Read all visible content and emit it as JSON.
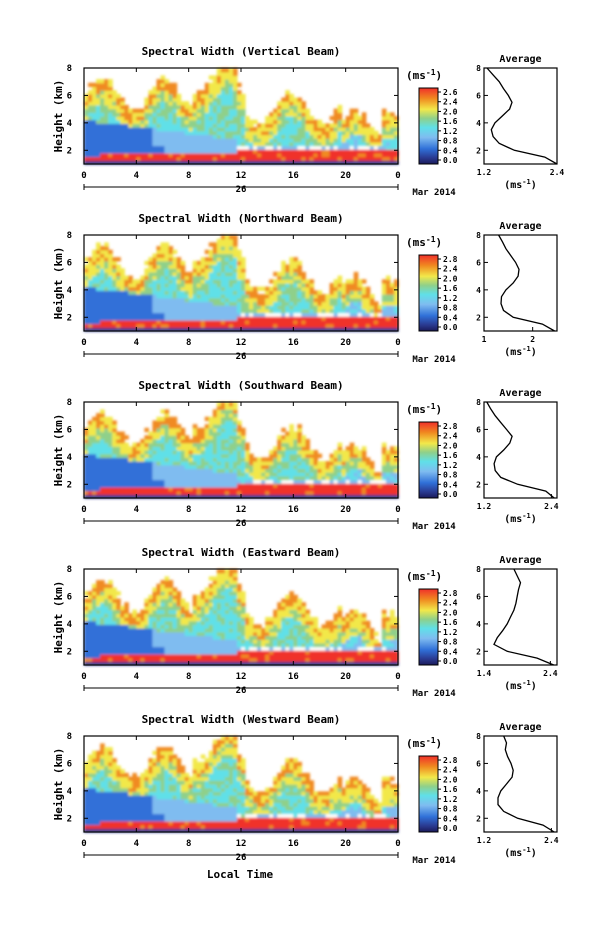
{
  "figure": {
    "xlabel": "Local Time",
    "date_label": "Mar 2014",
    "day_label": "26",
    "colorbar_unit": "(ms",
    "colorbar_unit_sup": "-1",
    "avg_title": "Average",
    "avg_unit": "(ms",
    "avg_unit_sup": "-1",
    "ylabel": "Height (km)",
    "colors": {
      "red": "#f0302a",
      "orange": "#f08a20",
      "yellow": "#f2e84a",
      "green": "#8fd08a",
      "cyan": "#60e0e8",
      "lightblue": "#7fbcf0",
      "blue": "#3070d8",
      "navy": "#2a3a90"
    }
  },
  "chart_data": [
    {
      "type": "heatmap",
      "title": "Spectral Width (Vertical Beam)",
      "x_ticks": [
        "0",
        "4",
        "8",
        "12",
        "16",
        "20",
        "0"
      ],
      "xlim": [
        0,
        24
      ],
      "y_ticks": [
        "2",
        "4",
        "6",
        "8"
      ],
      "ylim": [
        1,
        8
      ],
      "colorbar_ticks": [
        "2.6",
        "2.4",
        "2.0",
        "1.6",
        "1.2",
        "0.8",
        "0.4",
        "0.0"
      ],
      "colorbar_range": [
        0,
        2.8
      ],
      "average_profile": {
        "x_ticks": [
          "1.2",
          "2.4"
        ],
        "xlim": [
          1.2,
          2.4
        ],
        "ylim": [
          1,
          8
        ],
        "y_ticks": [
          "2",
          "4",
          "6",
          "8"
        ],
        "values": [
          [
            2.4,
            1.0
          ],
          [
            2.2,
            1.5
          ],
          [
            1.7,
            2.0
          ],
          [
            1.45,
            2.5
          ],
          [
            1.35,
            3.0
          ],
          [
            1.32,
            3.5
          ],
          [
            1.38,
            4.0
          ],
          [
            1.5,
            4.5
          ],
          [
            1.62,
            5.0
          ],
          [
            1.66,
            5.5
          ],
          [
            1.6,
            6.0
          ],
          [
            1.52,
            6.5
          ],
          [
            1.45,
            7.0
          ],
          [
            1.35,
            7.5
          ],
          [
            1.25,
            8.0
          ]
        ]
      }
    },
    {
      "type": "heatmap",
      "title": "Spectral Width (Northward Beam)",
      "x_ticks": [
        "0",
        "4",
        "8",
        "12",
        "16",
        "20",
        "0"
      ],
      "xlim": [
        0,
        24
      ],
      "y_ticks": [
        "2",
        "4",
        "6",
        "8"
      ],
      "ylim": [
        1,
        8
      ],
      "colorbar_ticks": [
        "2.8",
        "2.4",
        "2.0",
        "1.6",
        "1.2",
        "0.8",
        "0.4",
        "0.0"
      ],
      "colorbar_range": [
        0,
        2.8
      ],
      "average_profile": {
        "x_ticks": [
          "1",
          "2"
        ],
        "xlim": [
          1,
          2.5
        ],
        "ylim": [
          1,
          8
        ],
        "y_ticks": [
          "2",
          "4",
          "6",
          "8"
        ],
        "values": [
          [
            2.45,
            1.0
          ],
          [
            2.2,
            1.5
          ],
          [
            1.6,
            2.0
          ],
          [
            1.4,
            2.5
          ],
          [
            1.35,
            3.0
          ],
          [
            1.36,
            3.5
          ],
          [
            1.45,
            4.0
          ],
          [
            1.6,
            4.5
          ],
          [
            1.7,
            5.0
          ],
          [
            1.72,
            5.5
          ],
          [
            1.65,
            6.0
          ],
          [
            1.55,
            6.5
          ],
          [
            1.45,
            7.0
          ],
          [
            1.38,
            7.5
          ],
          [
            1.3,
            8.0
          ]
        ]
      }
    },
    {
      "type": "heatmap",
      "title": "Spectral Width (Southward Beam)",
      "x_ticks": [
        "0",
        "4",
        "8",
        "12",
        "16",
        "20",
        "0"
      ],
      "xlim": [
        0,
        24
      ],
      "y_ticks": [
        "2",
        "4",
        "6",
        "8"
      ],
      "ylim": [
        1,
        8
      ],
      "colorbar_ticks": [
        "2.8",
        "2.4",
        "2.0",
        "1.6",
        "1.2",
        "0.8",
        "0.4",
        "0.0"
      ],
      "colorbar_range": [
        0,
        2.8
      ],
      "average_profile": {
        "x_ticks": [
          "1.2",
          "2.4"
        ],
        "xlim": [
          1.2,
          2.5
        ],
        "ylim": [
          1,
          8
        ],
        "y_ticks": [
          "2",
          "4",
          "6",
          "8"
        ],
        "values": [
          [
            2.45,
            1.0
          ],
          [
            2.3,
            1.5
          ],
          [
            1.8,
            2.0
          ],
          [
            1.5,
            2.5
          ],
          [
            1.4,
            3.0
          ],
          [
            1.38,
            3.5
          ],
          [
            1.42,
            4.0
          ],
          [
            1.55,
            4.5
          ],
          [
            1.66,
            5.0
          ],
          [
            1.7,
            5.5
          ],
          [
            1.6,
            6.0
          ],
          [
            1.5,
            6.5
          ],
          [
            1.4,
            7.0
          ],
          [
            1.32,
            7.5
          ],
          [
            1.25,
            8.0
          ]
        ]
      }
    },
    {
      "type": "heatmap",
      "title": "Spectral Width (Eastward Beam)",
      "x_ticks": [
        "0",
        "4",
        "8",
        "12",
        "16",
        "20",
        "0"
      ],
      "xlim": [
        0,
        24
      ],
      "y_ticks": [
        "2",
        "4",
        "6",
        "8"
      ],
      "ylim": [
        1,
        8
      ],
      "colorbar_ticks": [
        "2.8",
        "2.4",
        "2.0",
        "1.6",
        "1.2",
        "0.8",
        "0.4",
        "0.0"
      ],
      "colorbar_range": [
        0,
        2.8
      ],
      "average_profile": {
        "x_ticks": [
          "1.4",
          "2.4"
        ],
        "xlim": [
          1.4,
          2.5
        ],
        "ylim": [
          1,
          8
        ],
        "y_ticks": [
          "2",
          "4",
          "6",
          "8"
        ],
        "values": [
          [
            2.45,
            1.0
          ],
          [
            2.2,
            1.5
          ],
          [
            1.75,
            2.0
          ],
          [
            1.55,
            2.5
          ],
          [
            1.6,
            3.0
          ],
          [
            1.68,
            3.5
          ],
          [
            1.75,
            4.0
          ],
          [
            1.8,
            4.5
          ],
          [
            1.85,
            5.0
          ],
          [
            1.88,
            5.5
          ],
          [
            1.9,
            6.0
          ],
          [
            1.92,
            6.5
          ],
          [
            1.95,
            7.0
          ],
          [
            1.9,
            7.5
          ],
          [
            1.85,
            8.0
          ]
        ]
      }
    },
    {
      "type": "heatmap",
      "title": "Spectral Width (Westward Beam)",
      "x_ticks": [
        "0",
        "4",
        "8",
        "12",
        "16",
        "20",
        "0"
      ],
      "xlim": [
        0,
        24
      ],
      "y_ticks": [
        "2",
        "4",
        "6",
        "8"
      ],
      "ylim": [
        1,
        8
      ],
      "colorbar_ticks": [
        "2.8",
        "2.4",
        "2.0",
        "1.6",
        "1.2",
        "0.8",
        "0.4",
        "0.0"
      ],
      "colorbar_range": [
        0,
        2.8
      ],
      "average_profile": {
        "x_ticks": [
          "1.2",
          "2.4"
        ],
        "xlim": [
          1.2,
          2.5
        ],
        "ylim": [
          1,
          8
        ],
        "y_ticks": [
          "2",
          "4",
          "6",
          "8"
        ],
        "values": [
          [
            2.45,
            1.0
          ],
          [
            2.25,
            1.5
          ],
          [
            1.8,
            2.0
          ],
          [
            1.55,
            2.5
          ],
          [
            1.45,
            3.0
          ],
          [
            1.45,
            3.5
          ],
          [
            1.5,
            4.0
          ],
          [
            1.6,
            4.5
          ],
          [
            1.7,
            5.0
          ],
          [
            1.72,
            5.5
          ],
          [
            1.68,
            6.0
          ],
          [
            1.62,
            6.5
          ],
          [
            1.58,
            7.0
          ],
          [
            1.6,
            7.5
          ],
          [
            1.55,
            8.0
          ]
        ]
      }
    }
  ]
}
